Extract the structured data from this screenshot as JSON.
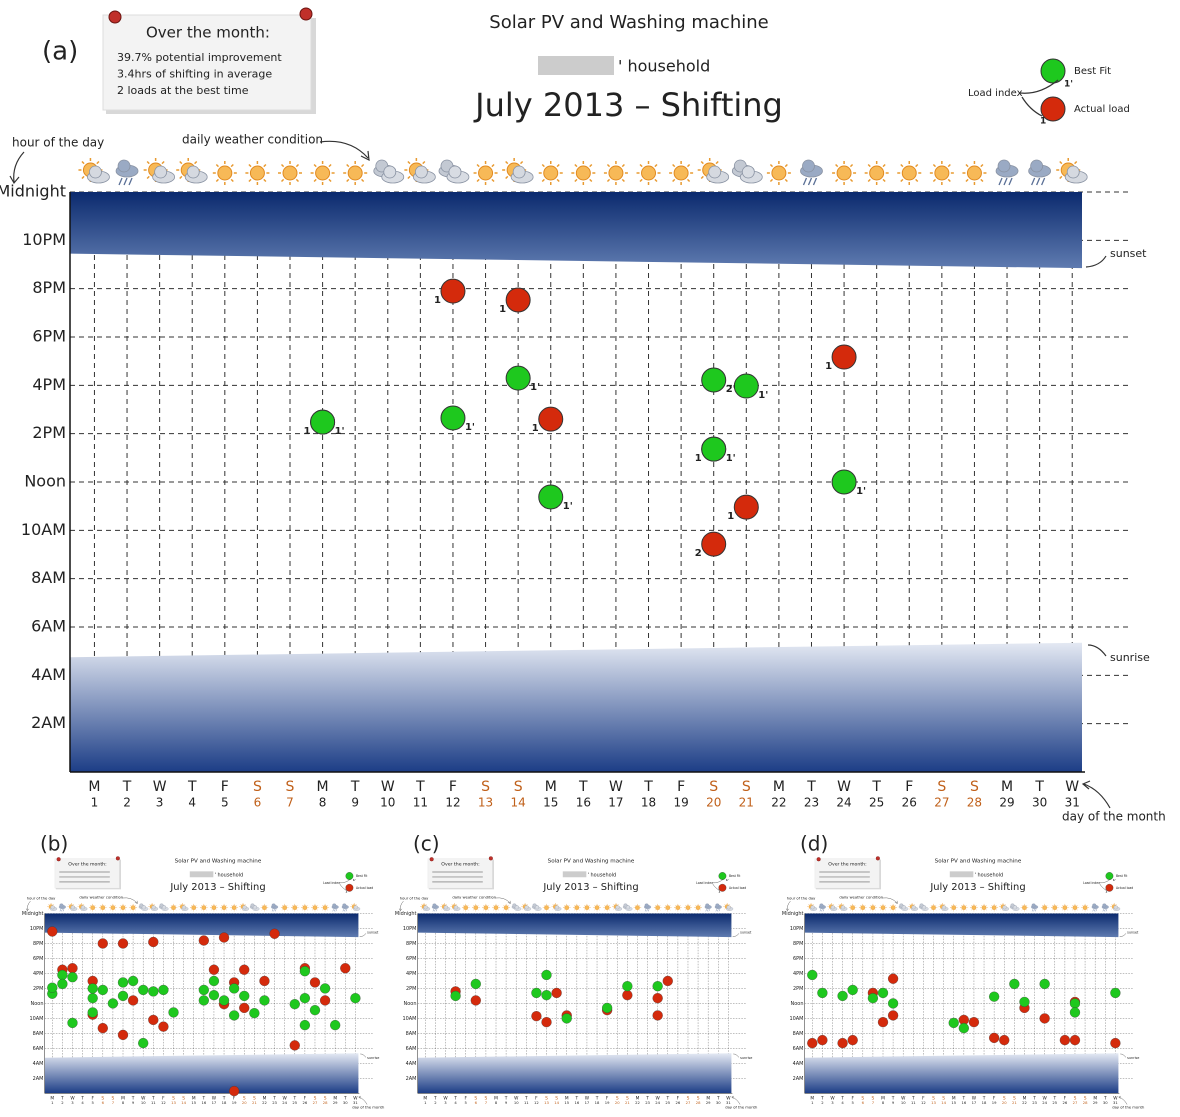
{
  "chart_data": [
    {
      "type": "scatter",
      "panel_label": "(a)",
      "title": "Solar PV and Washing machine",
      "household": "' household",
      "subtitle": "July 2013 – Shifting",
      "note_title": "Over the month:",
      "note_lines": [
        "39.7% potential improvement",
        "3.4hrs of shifting in average",
        "2 loads at the best time"
      ],
      "legend_title": "Load index",
      "legend_index_labels": [
        "1'",
        "1"
      ],
      "annotations": {
        "y_axis": "hour of the day",
        "weather": "daily weather condition",
        "sunset": "sunset",
        "sunrise": "sunrise",
        "x_axis": "day of the month"
      },
      "xlim": [
        0.25,
        31.3
      ],
      "xticks": [
        1,
        2,
        3,
        4,
        5,
        6,
        7,
        8,
        9,
        10,
        11,
        12,
        13,
        14,
        15,
        16,
        17,
        18,
        19,
        20,
        21,
        22,
        23,
        24,
        25,
        26,
        27,
        28,
        29,
        30,
        31
      ],
      "weekdays": [
        "M",
        "T",
        "W",
        "T",
        "F",
        "S",
        "S",
        "M",
        "T",
        "W",
        "T",
        "F",
        "S",
        "S",
        "M",
        "T",
        "W",
        "T",
        "F",
        "S",
        "S",
        "M",
        "T",
        "W",
        "T",
        "F",
        "S",
        "S",
        "M",
        "T",
        "W"
      ],
      "weekend_color": "#c0601a",
      "weather": [
        "partly",
        "storm",
        "partly",
        "partly",
        "sun",
        "sun",
        "sun",
        "sun",
        "sun",
        "cloud",
        "partly",
        "cloud",
        "sun",
        "partly",
        "sun",
        "sun",
        "sun",
        "sun",
        "sun",
        "partly",
        "cloud",
        "sun",
        "storm",
        "sun",
        "sun",
        "sun",
        "sun",
        "sun",
        "storm",
        "storm",
        "partly"
      ],
      "ylim": [
        0,
        24
      ],
      "yticks": [
        {
          "value": 24,
          "label": "Midnight"
        },
        {
          "value": 22,
          "label": "10PM"
        },
        {
          "value": 20,
          "label": "8PM"
        },
        {
          "value": 18,
          "label": "6PM"
        },
        {
          "value": 16,
          "label": "4PM"
        },
        {
          "value": 14,
          "label": "2PM"
        },
        {
          "value": 12,
          "label": "Noon"
        },
        {
          "value": 10,
          "label": "10AM"
        },
        {
          "value": 8,
          "label": "8AM"
        },
        {
          "value": 6,
          "label": "6AM"
        },
        {
          "value": 4,
          "label": "4AM"
        },
        {
          "value": 2,
          "label": "2AM"
        }
      ],
      "grid": true,
      "sunset": [
        21.45,
        20.85
      ],
      "sunrise": [
        4.75,
        5.35
      ],
      "series": [
        {
          "name": "Best Fit",
          "color": "#1ec81e",
          "x": [
            8,
            12,
            14,
            15,
            20,
            21,
            20,
            24
          ],
          "values": [
            14.48,
            14.65,
            16.3,
            11.38,
            16.22,
            15.97,
            13.36,
            12
          ],
          "point_labels": [
            "1'",
            "1'",
            "1'",
            "1'",
            "2'",
            "1'",
            "1'",
            "1'"
          ]
        },
        {
          "name": "Actual load",
          "color": "#d42a0c",
          "x": [
            8,
            12,
            14,
            15,
            24,
            20,
            21,
            20
          ],
          "values": [
            14.48,
            19.9,
            19.53,
            14.6,
            17.17,
            13.36,
            10.96,
            9.43
          ],
          "point_labels": [
            "1",
            "1",
            "1",
            "1",
            "1",
            "1",
            "1",
            "2"
          ]
        }
      ]
    },
    {
      "type": "scatter",
      "panel_label": "(b)",
      "title": "Solar PV and Washing machine",
      "household": "' household",
      "subtitle": "July 2013 – Shifting",
      "note_title": "Over the month:",
      "legend_title": "Load index",
      "legend_index_labels": [
        "1'",
        "1"
      ],
      "annotations": {
        "y_axis": "hour of the day",
        "weather": "daily weather condition",
        "sunset": "sunset",
        "sunrise": "sunrise",
        "x_axis": "day of the month"
      },
      "xlim": [
        0.25,
        31.3
      ],
      "xticks": [
        1,
        2,
        3,
        4,
        5,
        6,
        7,
        8,
        9,
        10,
        11,
        12,
        13,
        14,
        15,
        16,
        17,
        18,
        19,
        20,
        21,
        22,
        23,
        24,
        25,
        26,
        27,
        28,
        29,
        30,
        31
      ],
      "weekdays": [
        "M",
        "T",
        "W",
        "T",
        "F",
        "S",
        "S",
        "M",
        "T",
        "W",
        "T",
        "F",
        "S",
        "S",
        "M",
        "T",
        "W",
        "T",
        "F",
        "S",
        "S",
        "M",
        "T",
        "W",
        "T",
        "F",
        "S",
        "S",
        "M",
        "T",
        "W"
      ],
      "weekend_color": "#c0601a",
      "weather": [
        "partly",
        "storm",
        "partly",
        "partly",
        "sun",
        "sun",
        "sun",
        "sun",
        "sun",
        "cloud",
        "partly",
        "cloud",
        "sun",
        "partly",
        "sun",
        "sun",
        "sun",
        "sun",
        "sun",
        "partly",
        "cloud",
        "sun",
        "storm",
        "sun",
        "sun",
        "sun",
        "sun",
        "sun",
        "storm",
        "storm",
        "partly"
      ],
      "ylim": [
        0,
        24
      ],
      "yticks": [
        {
          "value": 24,
          "label": "Midnight"
        },
        {
          "value": 22,
          "label": "10PM"
        },
        {
          "value": 20,
          "label": "8PM"
        },
        {
          "value": 18,
          "label": "6PM"
        },
        {
          "value": 16,
          "label": "4PM"
        },
        {
          "value": 14,
          "label": "2PM"
        },
        {
          "value": 12,
          "label": "Noon"
        },
        {
          "value": 10,
          "label": "10AM"
        },
        {
          "value": 8,
          "label": "8AM"
        },
        {
          "value": 6,
          "label": "6AM"
        },
        {
          "value": 4,
          "label": "4AM"
        },
        {
          "value": 2,
          "label": "2AM"
        }
      ],
      "grid": true,
      "sunset": [
        21.45,
        20.85
      ],
      "sunrise": [
        4.75,
        5.35
      ],
      "series": [
        {
          "name": "Best Fit",
          "color": "#1ec81e",
          "x": [
            1,
            1,
            2,
            2,
            3,
            3,
            5,
            5,
            5,
            6,
            7,
            8,
            8,
            9,
            10,
            10,
            11,
            12,
            13,
            16,
            16,
            17,
            17,
            18,
            19,
            19,
            20,
            21,
            22,
            25,
            26,
            27,
            26,
            28,
            29,
            31,
            26
          ],
          "values": [
            13.3,
            14.1,
            15.8,
            14.6,
            15.5,
            9.4,
            14,
            12.7,
            10.8,
            13.8,
            12,
            14.8,
            13,
            15,
            6.7,
            13.8,
            13.6,
            13.8,
            10.8,
            13.8,
            12.4,
            13.1,
            15,
            12.4,
            14,
            10.4,
            13,
            10.7,
            12.4,
            11.9,
            9.1,
            11.1,
            16.3,
            14,
            9.1,
            12.7,
            12.7
          ]
        },
        {
          "name": "Actual load",
          "color": "#d42a0c",
          "x": [
            1,
            2,
            3,
            5,
            6,
            5,
            6,
            8,
            9,
            8,
            11,
            11,
            12,
            16,
            18,
            17,
            19,
            20,
            18,
            20,
            19,
            23,
            22,
            26,
            28,
            25,
            27,
            30
          ],
          "values": [
            21.6,
            16.5,
            16.7,
            15,
            20,
            10.5,
            8.7,
            20,
            12.4,
            7.8,
            20.2,
            9.8,
            8.9,
            20.4,
            20.8,
            16.5,
            14.8,
            16.5,
            11.9,
            11.4,
            0.3,
            21.3,
            15,
            16.7,
            12.4,
            6.4,
            14.8,
            16.7
          ]
        }
      ]
    },
    {
      "type": "scatter",
      "panel_label": "(c)",
      "title": "Solar PV and Washing machine",
      "household": "' household",
      "subtitle": "July 2013 – Shifting",
      "note_title": "Over the month:",
      "legend_title": "Load index",
      "legend_index_labels": [
        "1'",
        "1"
      ],
      "annotations": {
        "y_axis": "hour of the day",
        "weather": "daily weather condition",
        "sunset": "sunset",
        "sunrise": "sunrise",
        "x_axis": "day of the month"
      },
      "xlim": [
        0.25,
        31.3
      ],
      "xticks": [
        1,
        2,
        3,
        4,
        5,
        6,
        7,
        8,
        9,
        10,
        11,
        12,
        13,
        14,
        15,
        16,
        17,
        18,
        19,
        20,
        21,
        22,
        23,
        24,
        25,
        26,
        27,
        28,
        29,
        30,
        31
      ],
      "weekdays": [
        "M",
        "T",
        "W",
        "T",
        "F",
        "S",
        "S",
        "M",
        "T",
        "W",
        "T",
        "F",
        "S",
        "S",
        "M",
        "T",
        "W",
        "T",
        "F",
        "S",
        "S",
        "M",
        "T",
        "W",
        "T",
        "F",
        "S",
        "S",
        "M",
        "T",
        "W"
      ],
      "weekend_color": "#c0601a",
      "weather": [
        "partly",
        "storm",
        "partly",
        "partly",
        "sun",
        "sun",
        "sun",
        "sun",
        "sun",
        "cloud",
        "partly",
        "cloud",
        "sun",
        "partly",
        "sun",
        "sun",
        "sun",
        "sun",
        "sun",
        "partly",
        "cloud",
        "sun",
        "storm",
        "sun",
        "sun",
        "sun",
        "sun",
        "sun",
        "storm",
        "storm",
        "partly"
      ],
      "ylim": [
        0,
        24
      ],
      "yticks": [
        {
          "value": 24,
          "label": "Midnight"
        },
        {
          "value": 22,
          "label": "10PM"
        },
        {
          "value": 20,
          "label": "8PM"
        },
        {
          "value": 18,
          "label": "6PM"
        },
        {
          "value": 16,
          "label": "4PM"
        },
        {
          "value": 14,
          "label": "2PM"
        },
        {
          "value": 12,
          "label": "Noon"
        },
        {
          "value": 10,
          "label": "10AM"
        },
        {
          "value": 8,
          "label": "8AM"
        },
        {
          "value": 6,
          "label": "6AM"
        },
        {
          "value": 4,
          "label": "4AM"
        },
        {
          "value": 2,
          "label": "2AM"
        }
      ],
      "grid": true,
      "sunset": [
        21.45,
        20.85
      ],
      "sunrise": [
        4.75,
        5.35
      ],
      "series": [
        {
          "name": "Best Fit",
          "color": "#1ec81e",
          "x": [
            4,
            6,
            13,
            12,
            13,
            15,
            19,
            21,
            24
          ],
          "values": [
            13,
            14.6,
            15.8,
            13.4,
            13.1,
            10,
            11.4,
            14.3,
            14.3
          ]
        },
        {
          "name": "Actual load",
          "color": "#d42a0c",
          "x": [
            4,
            6,
            12,
            13,
            14,
            15,
            19,
            21,
            25,
            24,
            24
          ],
          "values": [
            13.6,
            12.4,
            10.3,
            9.5,
            13.4,
            10.4,
            11.1,
            13.1,
            15,
            10.4,
            12.7
          ]
        }
      ]
    },
    {
      "type": "scatter",
      "panel_label": "(d)",
      "title": "Solar PV and Washing machine",
      "household": "' household",
      "subtitle": "July 2013 – Shifting",
      "note_title": "Over the month:",
      "legend_title": "Load index",
      "legend_index_labels": [
        "1'",
        "1"
      ],
      "annotations": {
        "y_axis": "hour of the day",
        "weather": "daily weather condition",
        "sunset": "sunset",
        "sunrise": "sunrise",
        "x_axis": "day of the month"
      },
      "xlim": [
        0.25,
        31.3
      ],
      "xticks": [
        1,
        2,
        3,
        4,
        5,
        6,
        7,
        8,
        9,
        10,
        11,
        12,
        13,
        14,
        15,
        16,
        17,
        18,
        19,
        20,
        21,
        22,
        23,
        24,
        25,
        26,
        27,
        28,
        29,
        30,
        31
      ],
      "weekdays": [
        "M",
        "T",
        "W",
        "T",
        "F",
        "S",
        "S",
        "M",
        "T",
        "W",
        "T",
        "F",
        "S",
        "S",
        "M",
        "T",
        "W",
        "T",
        "F",
        "S",
        "S",
        "M",
        "T",
        "W",
        "T",
        "F",
        "S",
        "S",
        "M",
        "T",
        "W"
      ],
      "weekend_color": "#c0601a",
      "weather": [
        "partly",
        "storm",
        "partly",
        "partly",
        "sun",
        "sun",
        "sun",
        "sun",
        "sun",
        "cloud",
        "partly",
        "cloud",
        "sun",
        "partly",
        "sun",
        "sun",
        "sun",
        "sun",
        "sun",
        "partly",
        "cloud",
        "sun",
        "storm",
        "sun",
        "sun",
        "sun",
        "sun",
        "sun",
        "storm",
        "storm",
        "partly"
      ],
      "ylim": [
        0,
        24
      ],
      "yticks": [
        {
          "value": 24,
          "label": "Midnight"
        },
        {
          "value": 22,
          "label": "10PM"
        },
        {
          "value": 20,
          "label": "8PM"
        },
        {
          "value": 18,
          "label": "6PM"
        },
        {
          "value": 16,
          "label": "4PM"
        },
        {
          "value": 14,
          "label": "2PM"
        },
        {
          "value": 12,
          "label": "Noon"
        },
        {
          "value": 10,
          "label": "10AM"
        },
        {
          "value": 8,
          "label": "8AM"
        },
        {
          "value": 6,
          "label": "6AM"
        },
        {
          "value": 4,
          "label": "4AM"
        },
        {
          "value": 2,
          "label": "2AM"
        }
      ],
      "grid": true,
      "sunset": [
        21.45,
        20.85
      ],
      "sunrise": [
        4.75,
        5.35
      ],
      "series": [
        {
          "name": "Best Fit",
          "color": "#1ec81e",
          "x": [
            1,
            2,
            4,
            5,
            7,
            8,
            9,
            15,
            16,
            19,
            21,
            24,
            27,
            27,
            31,
            22
          ],
          "values": [
            15.8,
            13.4,
            13,
            13.8,
            12.7,
            13.4,
            12,
            9.4,
            8.7,
            12.9,
            14.6,
            14.6,
            12,
            10.8,
            13.4,
            12.2
          ]
        },
        {
          "name": "Actual load",
          "color": "#d42a0c",
          "x": [
            1,
            2,
            4,
            5,
            7,
            8,
            9,
            9,
            16,
            17,
            19,
            20,
            22,
            24,
            26,
            27,
            27,
            31
          ],
          "values": [
            6.7,
            7.1,
            6.7,
            7.1,
            13.4,
            9.5,
            15.3,
            10.4,
            9.8,
            9.5,
            7.4,
            7.1,
            11.4,
            10,
            7.1,
            7.1,
            12.2,
            6.7
          ]
        }
      ]
    }
  ]
}
